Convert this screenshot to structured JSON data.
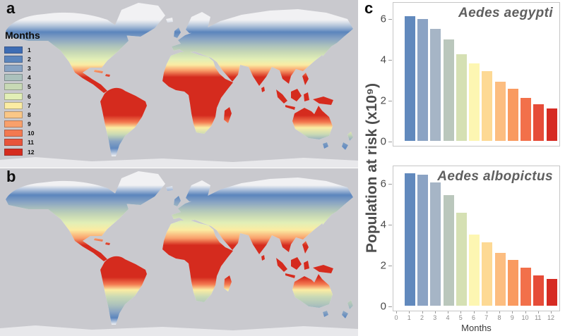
{
  "panels": {
    "a": "a",
    "b": "b",
    "c": "c"
  },
  "legend": {
    "title": "Months",
    "items": [
      {
        "label": "1",
        "color": "#3d6cb4"
      },
      {
        "label": "2",
        "color": "#5b85bd"
      },
      {
        "label": "3",
        "color": "#87a3c3"
      },
      {
        "label": "4",
        "color": "#abc1bc"
      },
      {
        "label": "5",
        "color": "#c8d9b5"
      },
      {
        "label": "6",
        "color": "#e2efb6"
      },
      {
        "label": "7",
        "color": "#fbeca3"
      },
      {
        "label": "8",
        "color": "#fac787"
      },
      {
        "label": "9",
        "color": "#f9a06b"
      },
      {
        "label": "10",
        "color": "#f37950"
      },
      {
        "label": "11",
        "color": "#e8543b"
      },
      {
        "label": "12",
        "color": "#d52b1e"
      }
    ]
  },
  "map_colors": {
    "ocean": "#c9c9ce",
    "land_no_data": "#f1f1f3",
    "antarctica": "#e8e8eb"
  },
  "charts_shared": {
    "y_axis_label": "Population at risk (x10⁹)",
    "y_ticks": [
      0,
      2,
      4,
      6
    ]
  },
  "chart_data": [
    {
      "type": "bar",
      "title": "Aedes aegypti",
      "xlabel": "",
      "ylabel": "Population at risk (x10⁹)",
      "ylim": [
        0,
        7
      ],
      "legend_position": "none",
      "grid": false,
      "categories": [
        1,
        2,
        3,
        4,
        5,
        6,
        7,
        8,
        9,
        10,
        11,
        12
      ],
      "values": [
        6.1,
        5.95,
        5.5,
        4.95,
        4.25,
        3.8,
        3.4,
        2.9,
        2.55,
        2.1,
        1.8,
        1.6
      ],
      "bar_colors": [
        "#6189bd",
        "#8ba3c4",
        "#a6b5c6",
        "#bac7bc",
        "#d5e0b3",
        "#fdf6b2",
        "#fdd994",
        "#fcbd80",
        "#f99a60",
        "#f2704a",
        "#e64c38",
        "#d62b23"
      ]
    },
    {
      "type": "bar",
      "title": "Aedes albopictus",
      "xlabel": "Months",
      "ylabel": "Population at risk (x10⁹)",
      "ylim": [
        0,
        7
      ],
      "legend_position": "none",
      "grid": false,
      "categories": [
        1,
        2,
        3,
        4,
        5,
        6,
        7,
        8,
        9,
        10,
        11,
        12
      ],
      "x_ticks": [
        "0",
        "1",
        "2",
        "3",
        "4",
        "5",
        "6",
        "7",
        "8",
        "9",
        "10",
        "11",
        "12"
      ],
      "values": [
        6.5,
        6.4,
        6.05,
        5.4,
        4.55,
        3.5,
        3.1,
        2.6,
        2.25,
        1.85,
        1.5,
        1.3
      ],
      "bar_colors": [
        "#6189bd",
        "#8ba3c4",
        "#a6b5c6",
        "#bac7bc",
        "#d5e0b3",
        "#fdf6b2",
        "#fdd994",
        "#fcbd80",
        "#f99a60",
        "#f2704a",
        "#e64c38",
        "#d62b23"
      ]
    }
  ]
}
